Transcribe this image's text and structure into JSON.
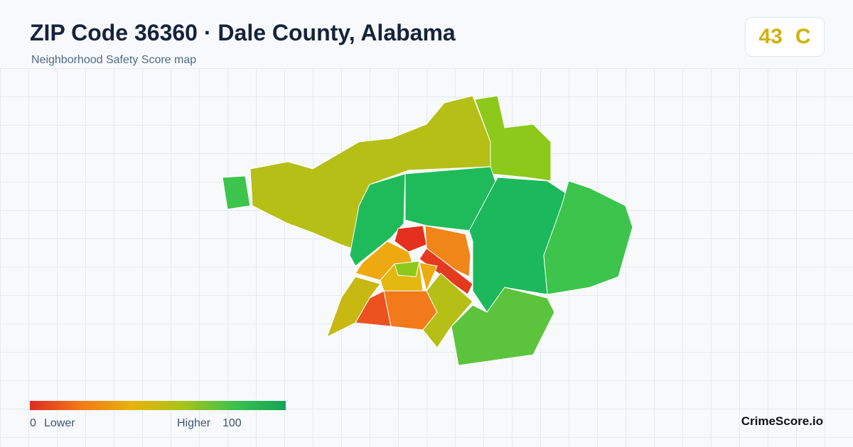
{
  "header": {
    "title": "ZIP Code 36360 · Dale County, Alabama",
    "subtitle": "Neighborhood Safety Score map"
  },
  "score": {
    "value": "43",
    "grade": "C"
  },
  "legend": {
    "min": "0",
    "min_label": "Lower",
    "max_label": "Higher",
    "max": "100"
  },
  "footer": {
    "brand": "CrimeScore.io"
  }
}
